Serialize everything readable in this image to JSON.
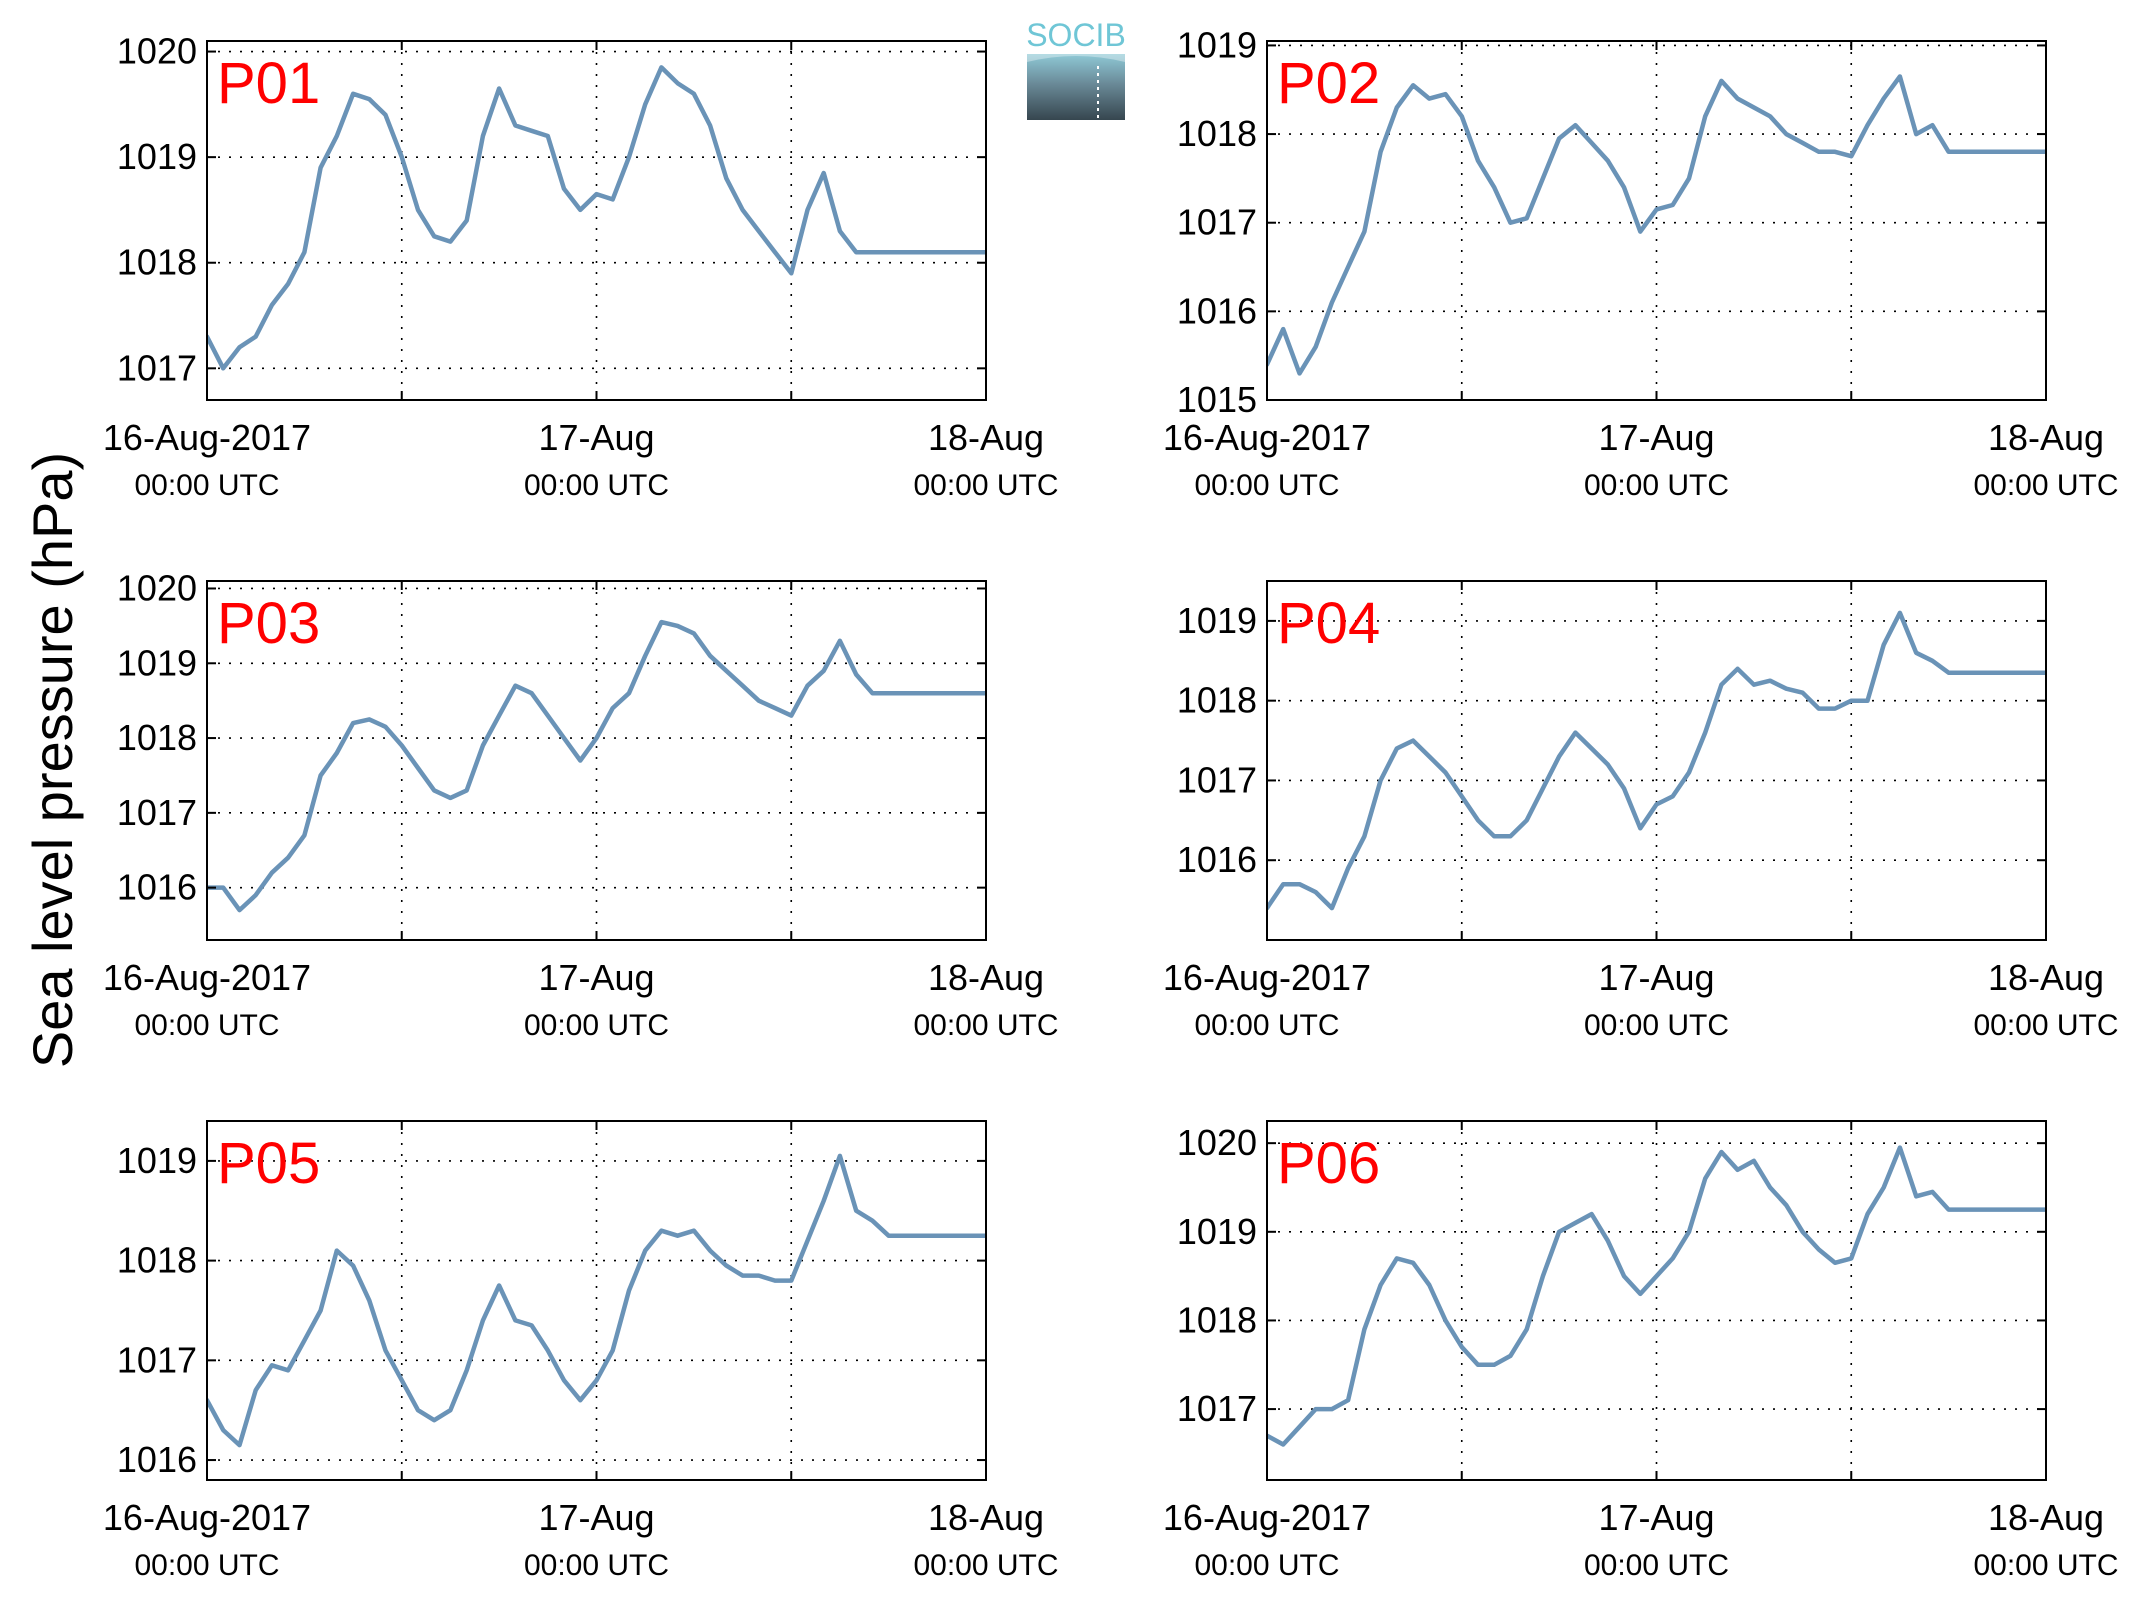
{
  "figure": {
    "ylabel": "Sea level pressure (hPa)",
    "logo_text": "SOCIB",
    "series_color": "#6a93b7",
    "panel_label_color": "#ff0000"
  },
  "chart_data": [
    {
      "type": "line",
      "title": "P01",
      "xlim": [
        "2017-08-16 00:00",
        "2017-08-18 00:00"
      ],
      "xticks": [
        {
          "main": "16-Aug-2017",
          "sub": "00:00 UTC"
        },
        {
          "main": "17-Aug",
          "sub": "00:00 UTC"
        },
        {
          "main": "18-Aug",
          "sub": "00:00 UTC"
        }
      ],
      "ylim": [
        1016.7,
        1020.1
      ],
      "yticks": [
        1017,
        1018,
        1019,
        1020
      ],
      "grid": true,
      "series": [
        {
          "x_hours": [
            0,
            1,
            2,
            3,
            4,
            5,
            6,
            7,
            8,
            9,
            10,
            11,
            12,
            13,
            14,
            15,
            16,
            17,
            18,
            19,
            20,
            21,
            22,
            23,
            24,
            25,
            26,
            27,
            28,
            29,
            30,
            31,
            32,
            33,
            34,
            35,
            36,
            37,
            38,
            39,
            40,
            41,
            42,
            43,
            44,
            45,
            46,
            47,
            48
          ],
          "y": [
            1017.3,
            1017.0,
            1017.2,
            1017.3,
            1017.6,
            1017.8,
            1018.1,
            1018.9,
            1019.2,
            1019.6,
            1019.55,
            1019.4,
            1019.0,
            1018.5,
            1018.25,
            1018.2,
            1018.4,
            1019.2,
            1019.65,
            1019.3,
            1019.25,
            1019.2,
            1018.7,
            1018.5,
            1018.65,
            1018.6,
            1019.0,
            1019.5,
            1019.85,
            1019.7,
            1019.6,
            1019.3,
            1018.8,
            1018.5,
            1018.3,
            1018.1,
            1017.9,
            1018.5,
            1018.85,
            1018.3,
            1018.1,
            1018.1,
            1018.1,
            1018.1,
            1018.1,
            1018.1,
            1018.1,
            1018.1,
            1018.1
          ]
        }
      ]
    },
    {
      "type": "line",
      "title": "P02",
      "xlim": [
        "2017-08-16 00:00",
        "2017-08-18 00:00"
      ],
      "xticks": [
        {
          "main": "16-Aug-2017",
          "sub": "00:00 UTC"
        },
        {
          "main": "17-Aug",
          "sub": "00:00 UTC"
        },
        {
          "main": "18-Aug",
          "sub": "00:00 UTC"
        }
      ],
      "ylim": [
        1015,
        1019.05
      ],
      "yticks": [
        1015,
        1016,
        1017,
        1018,
        1019
      ],
      "grid": true,
      "series": [
        {
          "x_hours": [
            0,
            1,
            2,
            3,
            4,
            5,
            6,
            7,
            8,
            9,
            10,
            11,
            12,
            13,
            14,
            15,
            16,
            17,
            18,
            19,
            20,
            21,
            22,
            23,
            24,
            25,
            26,
            27,
            28,
            29,
            30,
            31,
            32,
            33,
            34,
            35,
            36,
            37,
            38,
            39,
            40,
            41,
            42,
            43,
            44,
            45,
            46,
            47,
            48
          ],
          "y": [
            1015.4,
            1015.8,
            1015.3,
            1015.6,
            1016.1,
            1016.5,
            1016.9,
            1017.8,
            1018.3,
            1018.55,
            1018.4,
            1018.45,
            1018.2,
            1017.7,
            1017.4,
            1017.0,
            1017.05,
            1017.5,
            1017.95,
            1018.1,
            1017.9,
            1017.7,
            1017.4,
            1016.9,
            1017.15,
            1017.2,
            1017.5,
            1018.2,
            1018.6,
            1018.4,
            1018.3,
            1018.2,
            1018.0,
            1017.9,
            1017.8,
            1017.8,
            1017.75,
            1018.1,
            1018.4,
            1018.65,
            1018.0,
            1018.1,
            1017.8,
            1017.8,
            1017.8,
            1017.8,
            1017.8,
            1017.8,
            1017.8
          ]
        }
      ]
    },
    {
      "type": "line",
      "title": "P03",
      "xlim": [
        "2017-08-16 00:00",
        "2017-08-18 00:00"
      ],
      "xticks": [
        {
          "main": "16-Aug-2017",
          "sub": "00:00 UTC"
        },
        {
          "main": "17-Aug",
          "sub": "00:00 UTC"
        },
        {
          "main": "18-Aug",
          "sub": "00:00 UTC"
        }
      ],
      "ylim": [
        1015.3,
        1020.1
      ],
      "yticks": [
        1016,
        1017,
        1018,
        1019,
        1020
      ],
      "grid": true,
      "series": [
        {
          "x_hours": [
            0,
            1,
            2,
            3,
            4,
            5,
            6,
            7,
            8,
            9,
            10,
            11,
            12,
            13,
            14,
            15,
            16,
            17,
            18,
            19,
            20,
            21,
            22,
            23,
            24,
            25,
            26,
            27,
            28,
            29,
            30,
            31,
            32,
            33,
            34,
            35,
            36,
            37,
            38,
            39,
            40,
            41,
            42,
            43,
            44,
            45,
            46,
            47,
            48
          ],
          "y": [
            1016.0,
            1016.0,
            1015.7,
            1015.9,
            1016.2,
            1016.4,
            1016.7,
            1017.5,
            1017.8,
            1018.2,
            1018.25,
            1018.15,
            1017.9,
            1017.6,
            1017.3,
            1017.2,
            1017.3,
            1017.9,
            1018.3,
            1018.7,
            1018.6,
            1018.3,
            1018.0,
            1017.7,
            1018.0,
            1018.4,
            1018.6,
            1019.1,
            1019.55,
            1019.5,
            1019.4,
            1019.1,
            1018.9,
            1018.7,
            1018.5,
            1018.4,
            1018.3,
            1018.7,
            1018.9,
            1019.3,
            1018.85,
            1018.6,
            1018.6,
            1018.6,
            1018.6,
            1018.6,
            1018.6,
            1018.6,
            1018.6
          ]
        }
      ]
    },
    {
      "type": "line",
      "title": "P04",
      "xlim": [
        "2017-08-16 00:00",
        "2017-08-18 00:00"
      ],
      "xticks": [
        {
          "main": "16-Aug-2017",
          "sub": "00:00 UTC"
        },
        {
          "main": "17-Aug",
          "sub": "00:00 UTC"
        },
        {
          "main": "18-Aug",
          "sub": "00:00 UTC"
        }
      ],
      "ylim": [
        1015.0,
        1019.5
      ],
      "yticks": [
        1016,
        1017,
        1018,
        1019
      ],
      "grid": true,
      "series": [
        {
          "x_hours": [
            0,
            1,
            2,
            3,
            4,
            5,
            6,
            7,
            8,
            9,
            10,
            11,
            12,
            13,
            14,
            15,
            16,
            17,
            18,
            19,
            20,
            21,
            22,
            23,
            24,
            25,
            26,
            27,
            28,
            29,
            30,
            31,
            32,
            33,
            34,
            35,
            36,
            37,
            38,
            39,
            40,
            41,
            42,
            43,
            44,
            45,
            46,
            47,
            48
          ],
          "y": [
            1015.4,
            1015.7,
            1015.7,
            1015.6,
            1015.4,
            1015.9,
            1016.3,
            1017.0,
            1017.4,
            1017.5,
            1017.3,
            1017.1,
            1016.8,
            1016.5,
            1016.3,
            1016.3,
            1016.5,
            1016.9,
            1017.3,
            1017.6,
            1017.4,
            1017.2,
            1016.9,
            1016.4,
            1016.7,
            1016.8,
            1017.1,
            1017.6,
            1018.2,
            1018.4,
            1018.2,
            1018.25,
            1018.15,
            1018.1,
            1017.9,
            1017.9,
            1018.0,
            1018.0,
            1018.7,
            1019.1,
            1018.6,
            1018.5,
            1018.35,
            1018.35,
            1018.35,
            1018.35,
            1018.35,
            1018.35,
            1018.35
          ]
        }
      ]
    },
    {
      "type": "line",
      "title": "P05",
      "xlim": [
        "2017-08-16 00:00",
        "2017-08-18 00:00"
      ],
      "xticks": [
        {
          "main": "16-Aug-2017",
          "sub": "00:00 UTC"
        },
        {
          "main": "17-Aug",
          "sub": "00:00 UTC"
        },
        {
          "main": "18-Aug",
          "sub": "00:00 UTC"
        }
      ],
      "ylim": [
        1015.8,
        1019.4
      ],
      "yticks": [
        1016,
        1017,
        1018,
        1019
      ],
      "grid": true,
      "series": [
        {
          "x_hours": [
            0,
            1,
            2,
            3,
            4,
            5,
            6,
            7,
            8,
            9,
            10,
            11,
            12,
            13,
            14,
            15,
            16,
            17,
            18,
            19,
            20,
            21,
            22,
            23,
            24,
            25,
            26,
            27,
            28,
            29,
            30,
            31,
            32,
            33,
            34,
            35,
            36,
            37,
            38,
            39,
            40,
            41,
            42,
            43,
            44,
            45,
            46,
            47,
            48
          ],
          "y": [
            1016.6,
            1016.3,
            1016.15,
            1016.7,
            1016.95,
            1016.9,
            1017.2,
            1017.5,
            1018.1,
            1017.95,
            1017.6,
            1017.1,
            1016.8,
            1016.5,
            1016.4,
            1016.5,
            1016.9,
            1017.4,
            1017.75,
            1017.4,
            1017.35,
            1017.1,
            1016.8,
            1016.6,
            1016.8,
            1017.1,
            1017.7,
            1018.1,
            1018.3,
            1018.25,
            1018.3,
            1018.1,
            1017.95,
            1017.85,
            1017.85,
            1017.8,
            1017.8,
            1018.2,
            1018.6,
            1019.05,
            1018.5,
            1018.4,
            1018.25,
            1018.25,
            1018.25,
            1018.25,
            1018.25,
            1018.25,
            1018.25
          ]
        }
      ]
    },
    {
      "type": "line",
      "title": "P06",
      "xlim": [
        "2017-08-16 00:00",
        "2017-08-18 00:00"
      ],
      "xticks": [
        {
          "main": "16-Aug-2017",
          "sub": "00:00 UTC"
        },
        {
          "main": "17-Aug",
          "sub": "00:00 UTC"
        },
        {
          "main": "18-Aug",
          "sub": "00:00 UTC"
        }
      ],
      "ylim": [
        1016.2,
        1020.25
      ],
      "yticks": [
        1017,
        1018,
        1019,
        1020
      ],
      "grid": true,
      "series": [
        {
          "x_hours": [
            0,
            1,
            2,
            3,
            4,
            5,
            6,
            7,
            8,
            9,
            10,
            11,
            12,
            13,
            14,
            15,
            16,
            17,
            18,
            19,
            20,
            21,
            22,
            23,
            24,
            25,
            26,
            27,
            28,
            29,
            30,
            31,
            32,
            33,
            34,
            35,
            36,
            37,
            38,
            39,
            40,
            41,
            42,
            43,
            44,
            45,
            46,
            47,
            48
          ],
          "y": [
            1016.7,
            1016.6,
            1016.8,
            1017.0,
            1017.0,
            1017.1,
            1017.9,
            1018.4,
            1018.7,
            1018.65,
            1018.4,
            1018.0,
            1017.7,
            1017.5,
            1017.5,
            1017.6,
            1017.9,
            1018.5,
            1019.0,
            1019.1,
            1019.2,
            1018.9,
            1018.5,
            1018.3,
            1018.5,
            1018.7,
            1019.0,
            1019.6,
            1019.9,
            1019.7,
            1019.8,
            1019.5,
            1019.3,
            1019.0,
            1018.8,
            1018.65,
            1018.7,
            1019.2,
            1019.5,
            1019.95,
            1019.4,
            1019.45,
            1019.25,
            1019.25,
            1019.25,
            1019.25,
            1019.25,
            1019.25,
            1019.25
          ]
        }
      ]
    }
  ]
}
